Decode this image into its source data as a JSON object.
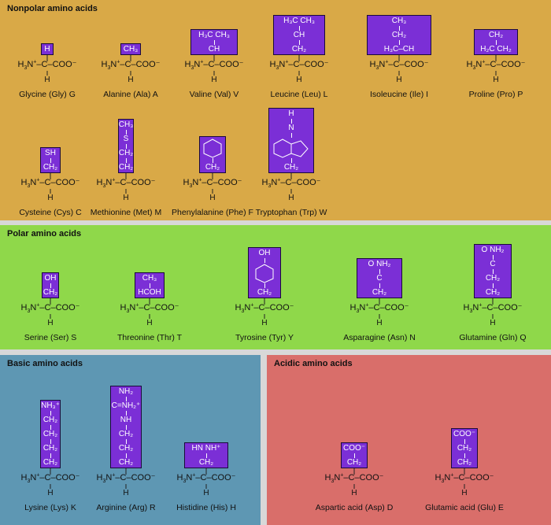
{
  "sections": {
    "nonpolar": "Nonpolar amino acids",
    "polar": "Polar amino acids",
    "basic": "Basic amino acids",
    "acidic": "Acidic amino acids"
  },
  "colors": {
    "nonpolar": "#d9a947",
    "polar": "#8fd84a",
    "basic": "#5e97b3",
    "acidic": "#d96e6a",
    "sidechain": "#7b2fd6"
  },
  "backbone": {
    "left": "H₃N",
    "charge": "+",
    "carbon": "C",
    "acid": "COO⁻",
    "h": "H"
  },
  "amino_acids": [
    {
      "name": "Glycine (Gly) G",
      "side": [
        "H"
      ]
    },
    {
      "name": "Alanine (Ala) A",
      "side": [
        "CH₃"
      ]
    },
    {
      "name": "Valine (Val) V",
      "side": [
        "H₃C  CH₃",
        "CH"
      ]
    },
    {
      "name": "Leucine (Leu) L",
      "side": [
        "H₃C  CH₃",
        "CH",
        "CH₂"
      ]
    },
    {
      "name": "Isoleucine (Ile) I",
      "side": [
        "CH₃",
        "CH₂",
        "H₃C–CH"
      ]
    },
    {
      "name": "Proline (Pro) P",
      "side": [
        "CH₂",
        "H₂C  CH₂"
      ]
    },
    {
      "name": "Cysteine (Cys) C",
      "side": [
        "SH",
        "CH₂"
      ]
    },
    {
      "name": "Methionine (Met) M",
      "side": [
        "CH₃",
        "S",
        "CH₂",
        "CH₂"
      ]
    },
    {
      "name": "Phenylalanine (Phe) F",
      "side": [
        "ring",
        "CH₂"
      ]
    },
    {
      "name": "Tryptophan (Trp) W",
      "side": [
        "H",
        "N",
        "indole",
        "CH₂"
      ]
    },
    {
      "name": "Serine (Ser) S",
      "side": [
        "OH",
        "CH₂"
      ]
    },
    {
      "name": "Threonine (Thr) T",
      "side": [
        "CH₃",
        "HCOH"
      ]
    },
    {
      "name": "Tyrosine (Tyr) Y",
      "side": [
        "OH",
        "ring",
        "CH₂"
      ]
    },
    {
      "name": "Asparagine (Asn) N",
      "side": [
        "O   NH₂",
        "C",
        "CH₂"
      ]
    },
    {
      "name": "Glutamine (Gln) Q",
      "side": [
        "O   NH₂",
        "C",
        "CH₂",
        "CH₂"
      ]
    },
    {
      "name": "Lysine (Lys) K",
      "side": [
        "NH₃⁺",
        "CH₂",
        "CH₂",
        "CH₂",
        "CH₂"
      ]
    },
    {
      "name": "Arginine (Arg) R",
      "side": [
        "NH₂",
        "C=NH₂⁺",
        "NH",
        "CH₂",
        "CH₂",
        "CH₂"
      ]
    },
    {
      "name": "Histidine (His) H",
      "side": [
        "HN    NH⁺",
        "CH₂"
      ]
    },
    {
      "name": "Aspartic acid (Asp) D",
      "side": [
        "COO⁻",
        "CH₂"
      ]
    },
    {
      "name": "Glutamic acid (Glu) E",
      "side": [
        "COO⁻",
        "CH₂",
        "CH₂"
      ]
    }
  ]
}
